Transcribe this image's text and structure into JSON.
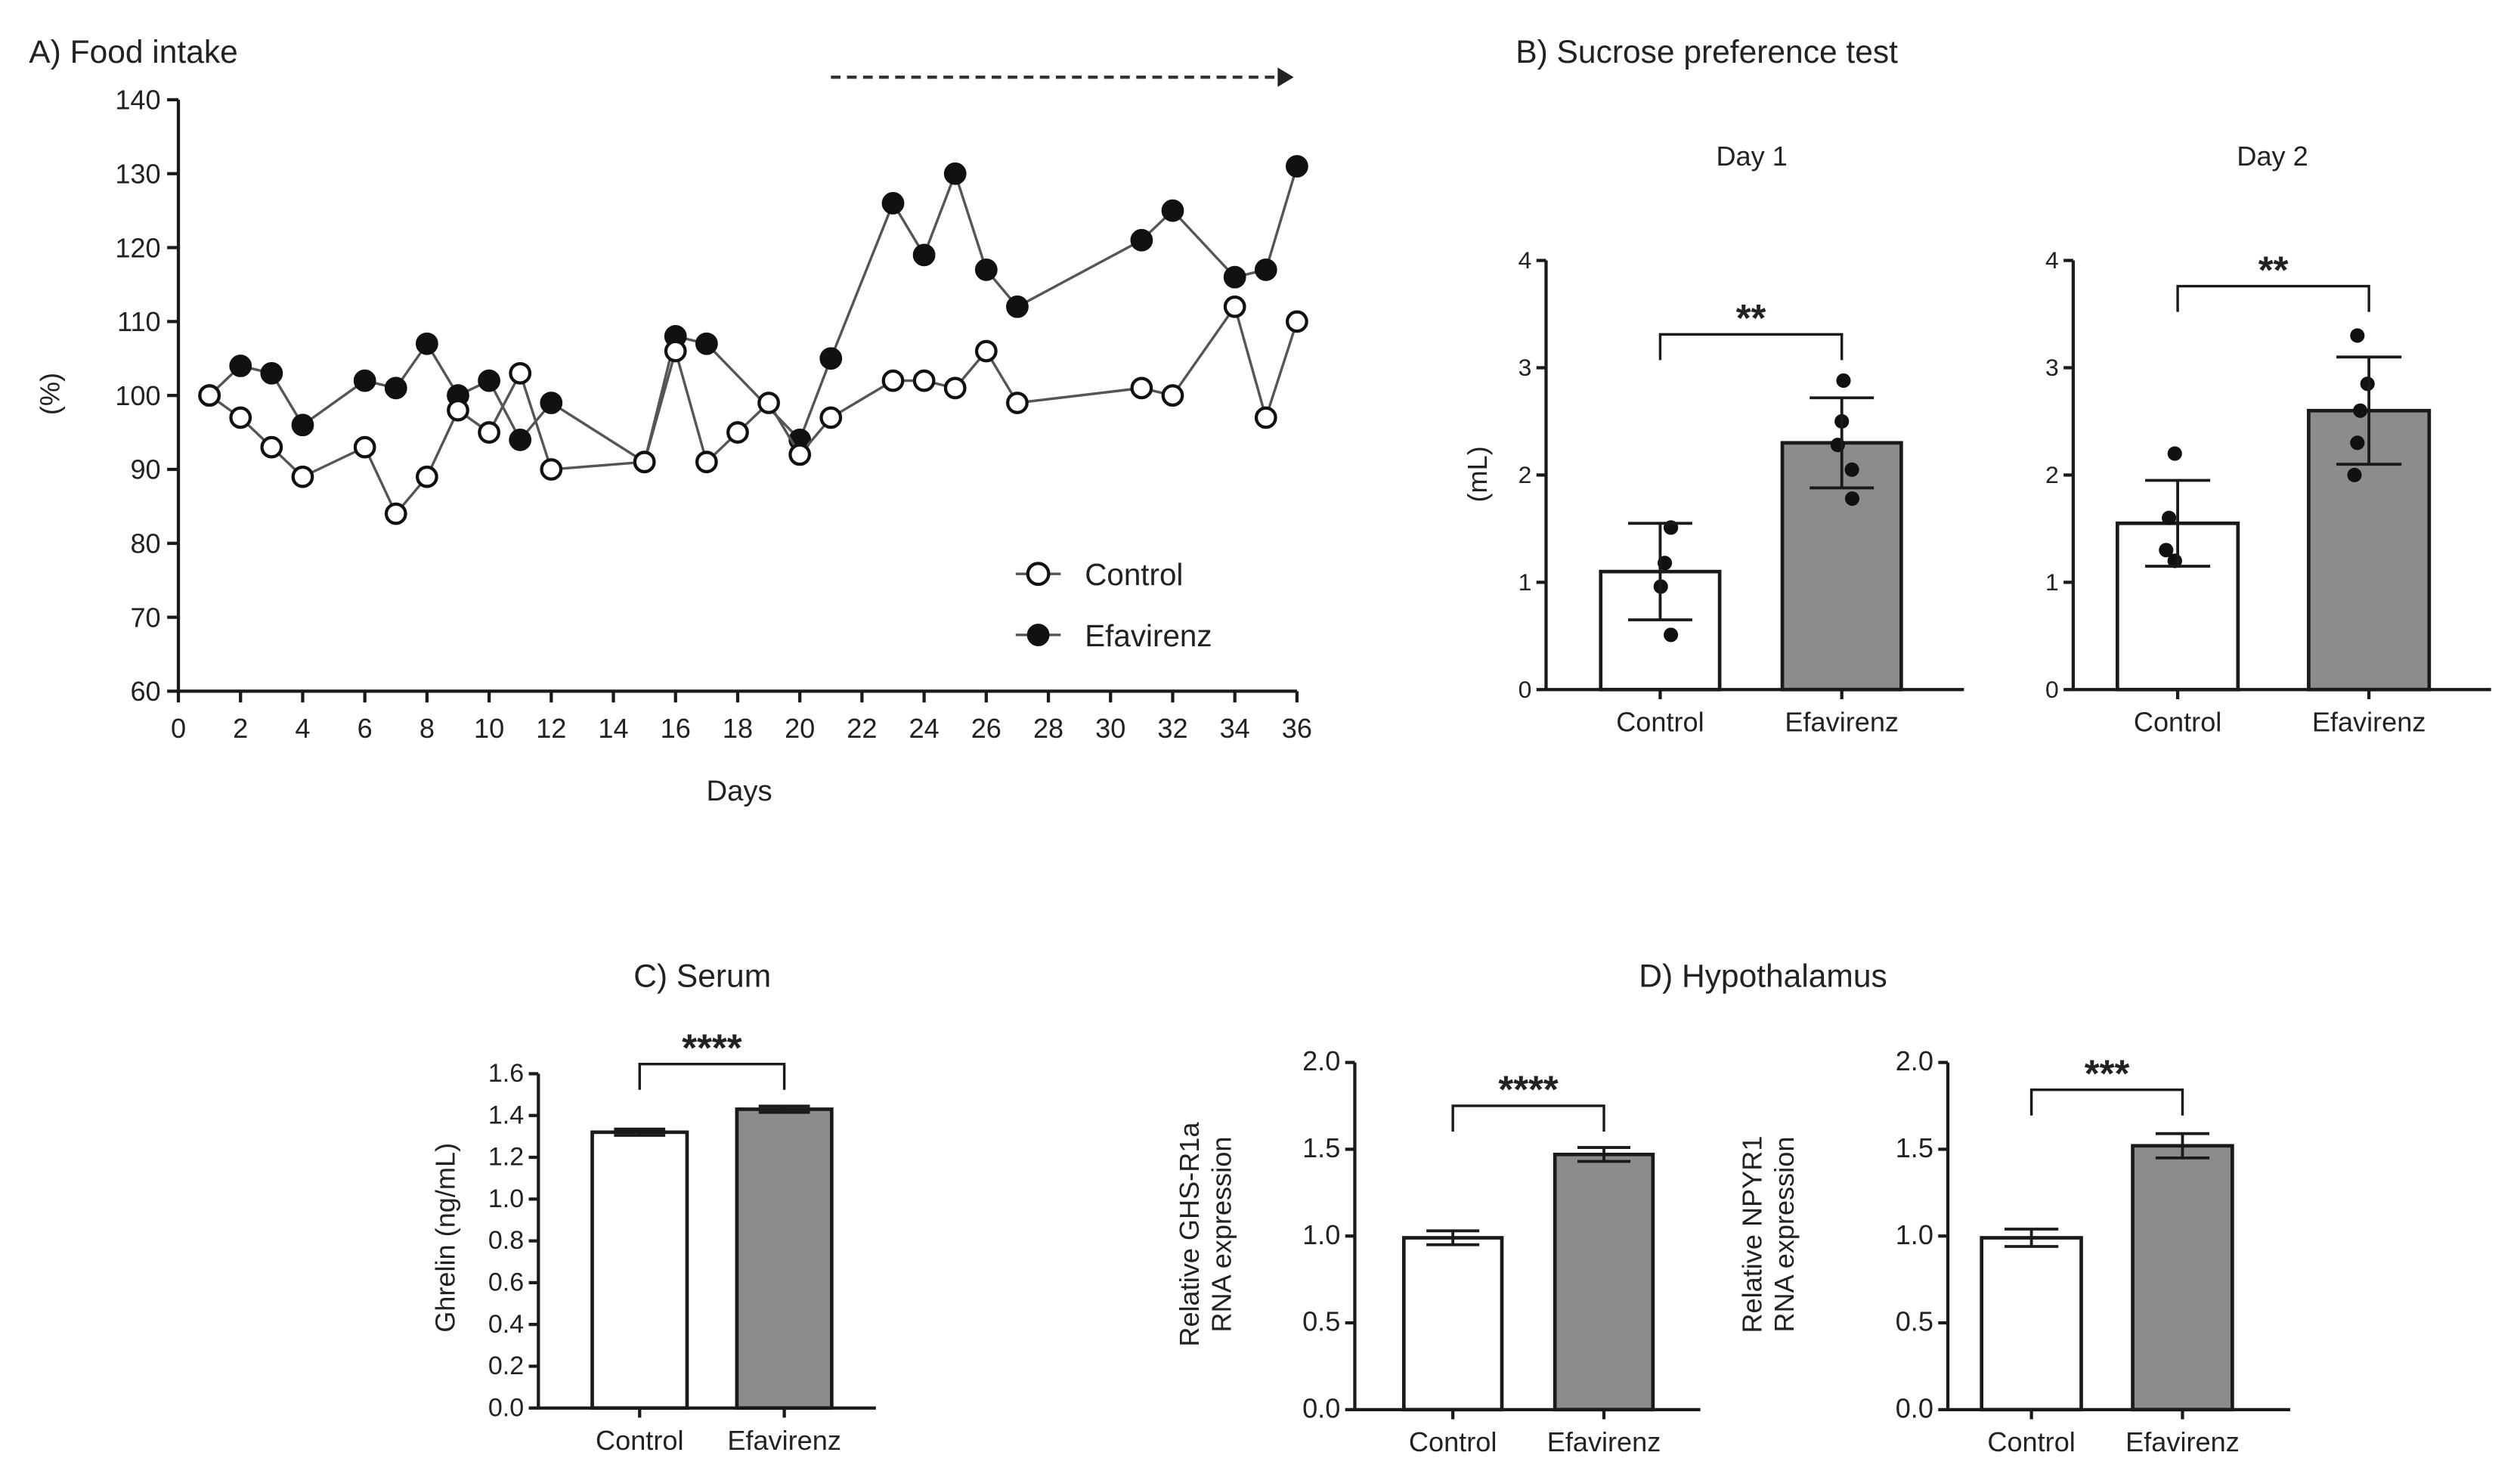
{
  "chart_data": [
    {
      "type": "line",
      "title": "A) Food intake",
      "xlabel": "Days",
      "ylabel": "(%)",
      "xlim": [
        0,
        36
      ],
      "ylim": [
        60,
        140
      ],
      "xticks": [
        0,
        2,
        4,
        6,
        8,
        10,
        12,
        14,
        16,
        18,
        20,
        22,
        24,
        26,
        28,
        30,
        32,
        34,
        36
      ],
      "yticks": [
        60,
        70,
        80,
        90,
        100,
        110,
        120,
        130,
        140
      ],
      "legend_position": "bottom-right",
      "annotation": "dashed arrow from day 21 to day 36",
      "series": [
        {
          "name": "Control",
          "marker": "open-circle",
          "x": [
            1,
            2,
            3,
            4,
            6,
            7,
            8,
            9,
            10,
            11,
            12,
            15,
            16,
            17,
            18,
            19,
            20,
            21,
            23,
            24,
            25,
            26,
            27,
            31,
            32,
            34,
            35,
            36
          ],
          "y": [
            100,
            97,
            93,
            89,
            93,
            84,
            89,
            98,
            95,
            103,
            90,
            91,
            106,
            91,
            95,
            99,
            92,
            97,
            102,
            102,
            101,
            106,
            99,
            101,
            100,
            112,
            97,
            110
          ]
        },
        {
          "name": "Efavirenz",
          "marker": "filled-circle",
          "x": [
            1,
            2,
            3,
            4,
            6,
            7,
            8,
            9,
            10,
            11,
            12,
            15,
            16,
            17,
            20,
            21,
            23,
            24,
            25,
            26,
            27,
            31,
            32,
            34,
            35,
            36
          ],
          "y": [
            100,
            104,
            103,
            96,
            102,
            101,
            107,
            100,
            102,
            94,
            99,
            91,
            108,
            107,
            94,
            105,
            126,
            119,
            130,
            117,
            112,
            121,
            125,
            116,
            117,
            131
          ]
        }
      ]
    },
    {
      "type": "bar",
      "panel_title": "B) Sucrose preference test",
      "title": "Day 1",
      "ylabel": "(mL)",
      "ylim": [
        0,
        4
      ],
      "yticks": [
        "0",
        "1",
        "2",
        "3",
        "4"
      ],
      "categories": [
        "Control",
        "Efavirenz"
      ],
      "values": [
        1.1,
        2.3
      ],
      "error_upper": [
        1.55,
        2.72
      ],
      "error_lower": [
        0.65,
        1.88
      ],
      "points": [
        [
          1.51,
          1.51,
          1.18,
          0.96,
          0.51
        ],
        [
          2.88,
          2.5,
          2.28,
          2.05,
          1.78
        ]
      ],
      "significance": "**"
    },
    {
      "type": "bar",
      "title": "Day 2",
      "ylim": [
        0,
        4
      ],
      "yticks": [
        "0",
        "1",
        "2",
        "3",
        "4"
      ],
      "categories": [
        "Control",
        "Efavirenz"
      ],
      "values": [
        1.55,
        2.6
      ],
      "error_upper": [
        1.95,
        3.1
      ],
      "error_lower": [
        1.15,
        2.1
      ],
      "points": [
        [
          2.2,
          1.6,
          1.3,
          1.2,
          1.2
        ],
        [
          3.3,
          2.85,
          2.6,
          2.3,
          2.0
        ]
      ],
      "significance": "**"
    },
    {
      "type": "bar",
      "title": "C) Serum",
      "ylabel": "Ghrelin (ng/mL)",
      "ylim": [
        0,
        1.6
      ],
      "yticks": [
        "0.0",
        "0.2",
        "0.4",
        "0.6",
        "0.8",
        "1.0",
        "1.2",
        "1.4",
        "1.6"
      ],
      "categories": [
        "Control",
        "Efavirenz"
      ],
      "values": [
        1.32,
        1.43
      ],
      "error_upper": [
        1.335,
        1.445
      ],
      "error_lower": [
        1.305,
        1.415
      ],
      "significance": "****"
    },
    {
      "type": "bar",
      "panel_title": "D) Hypothalamus",
      "ylabel": [
        "Relative GHS-R1a",
        "RNA expression"
      ],
      "ylim": [
        0,
        2.0
      ],
      "yticks": [
        "0.0",
        "0.5",
        "1.0",
        "1.5",
        "2.0"
      ],
      "categories": [
        "Control",
        "Efavirenz"
      ],
      "values": [
        0.99,
        1.47
      ],
      "error_upper": [
        1.03,
        1.51
      ],
      "error_lower": [
        0.95,
        1.43
      ],
      "significance": "****"
    },
    {
      "type": "bar",
      "ylabel": [
        "Relative NPYR1",
        "RNA expression"
      ],
      "ylim": [
        0,
        2.0
      ],
      "yticks": [
        "0.0",
        "0.5",
        "1.0",
        "1.5",
        "2.0"
      ],
      "categories": [
        "Control",
        "Efavirenz"
      ],
      "values": [
        0.99,
        1.52
      ],
      "error_upper": [
        1.04,
        1.59
      ],
      "error_lower": [
        0.94,
        1.45
      ],
      "significance": "***"
    }
  ],
  "colors": {
    "control_bar": "#ffffff",
    "efavirenz_bar": "#8c8c8c",
    "ink": "#1a1a1a"
  }
}
